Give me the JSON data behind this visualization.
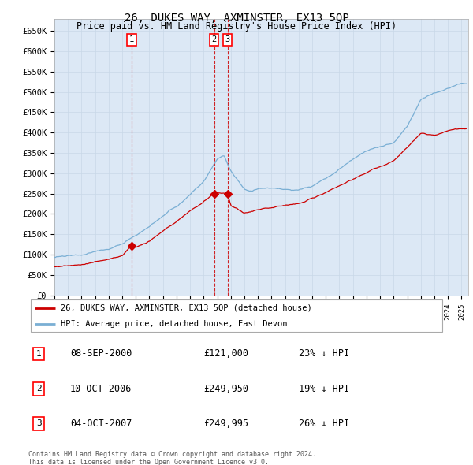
{
  "title": "26, DUKES WAY, AXMINSTER, EX13 5QP",
  "subtitle": "Price paid vs. HM Land Registry's House Price Index (HPI)",
  "ylabel_ticks": [
    "£0",
    "£50K",
    "£100K",
    "£150K",
    "£200K",
    "£250K",
    "£300K",
    "£350K",
    "£400K",
    "£450K",
    "£500K",
    "£550K",
    "£600K",
    "£650K"
  ],
  "ytick_values": [
    0,
    50000,
    100000,
    150000,
    200000,
    250000,
    300000,
    350000,
    400000,
    450000,
    500000,
    550000,
    600000,
    650000
  ],
  "xlim_start": 1995.0,
  "xlim_end": 2025.5,
  "ylim_min": 0,
  "ylim_max": 680000,
  "hpi_color": "#7aafd4",
  "price_color": "#cc0000",
  "vline_color": "#cc0000",
  "grid_color": "#c8d8e8",
  "bg_color": "#dce8f5",
  "legend_label_red": "26, DUKES WAY, AXMINSTER, EX13 5QP (detached house)",
  "legend_label_blue": "HPI: Average price, detached house, East Devon",
  "transactions": [
    {
      "num": 1,
      "date": "08-SEP-2000",
      "price": 121000,
      "year": 2000.69,
      "pct": "23%",
      "dir": "↓"
    },
    {
      "num": 2,
      "date": "10-OCT-2006",
      "price": 249950,
      "year": 2006.78,
      "pct": "19%",
      "dir": "↓"
    },
    {
      "num": 3,
      "date": "04-OCT-2007",
      "price": 249995,
      "year": 2007.76,
      "pct": "26%",
      "dir": "↓"
    }
  ],
  "footer_line1": "Contains HM Land Registry data © Crown copyright and database right 2024.",
  "footer_line2": "This data is licensed under the Open Government Licence v3.0.",
  "font_family": "monospace",
  "hpi_milestones_x": [
    1995,
    1996,
    1997,
    1998,
    1999,
    2000,
    2001,
    2002,
    2003,
    2004,
    2005,
    2006,
    2007,
    2007.5,
    2008,
    2009,
    2009.5,
    2010,
    2011,
    2012,
    2013,
    2014,
    2015,
    2016,
    2017,
    2018,
    2019,
    2020,
    2021,
    2022,
    2023,
    2024,
    2025
  ],
  "hpi_milestones_y": [
    93000,
    97000,
    102000,
    110000,
    118000,
    130000,
    148000,
    168000,
    195000,
    220000,
    250000,
    285000,
    340000,
    350000,
    310000,
    265000,
    265000,
    270000,
    272000,
    268000,
    270000,
    280000,
    300000,
    320000,
    345000,
    365000,
    375000,
    385000,
    425000,
    490000,
    510000,
    520000,
    530000
  ],
  "price_milestones_x": [
    1995,
    1996,
    1997,
    1998,
    1999,
    2000,
    2000.69,
    2001,
    2002,
    2003,
    2004,
    2005,
    2006,
    2006.78,
    2007,
    2007.76,
    2008,
    2009,
    2010,
    2011,
    2012,
    2013,
    2014,
    2015,
    2016,
    2017,
    2018,
    2019,
    2020,
    2021,
    2022,
    2023,
    2024,
    2025
  ],
  "price_milestones_y": [
    70000,
    72000,
    76000,
    82000,
    88000,
    95000,
    121000,
    115000,
    130000,
    155000,
    178000,
    205000,
    230000,
    249950,
    249995,
    249995,
    220000,
    205000,
    210000,
    215000,
    218000,
    222000,
    235000,
    250000,
    268000,
    285000,
    300000,
    315000,
    330000,
    360000,
    395000,
    390000,
    400000,
    405000
  ]
}
